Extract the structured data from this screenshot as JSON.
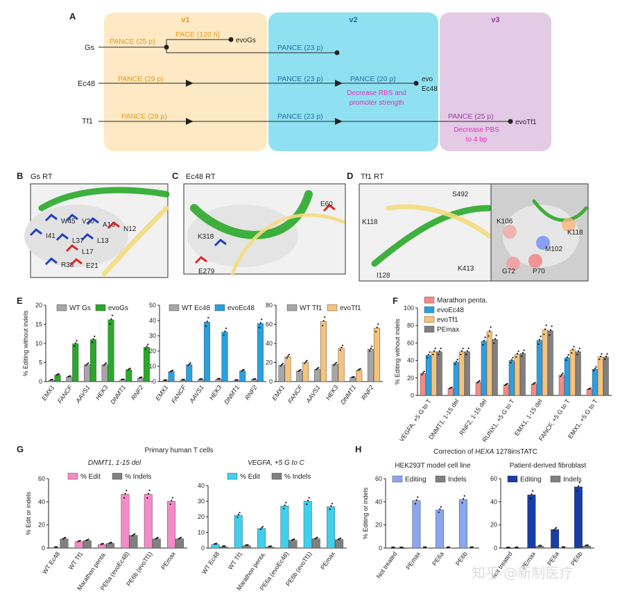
{
  "panels": {
    "A": {
      "label": "A",
      "phases": [
        {
          "name": "v1",
          "color": "#fde9c4",
          "text_color": "#e59a14"
        },
        {
          "name": "v2",
          "color": "#8fe1f1",
          "text_color": "#1f6ea8"
        },
        {
          "name": "v3",
          "color": "#e3cbe6",
          "text_color": "#9a3aa6"
        }
      ],
      "rows": [
        {
          "name": "Gs"
        },
        {
          "name": "Ec48"
        },
        {
          "name": "Tf1"
        }
      ],
      "labels": {
        "gs_v1": "PANCE (25 p)",
        "gs_pace": "PACE (120 h)",
        "gs_end": "evoGs",
        "gs_v2": "PANCE (23 p)",
        "ec_v1": "PANCE (29 p)",
        "ec_v2": "PANCE (23 p)",
        "ec_v2b": "PANCE (20 p)",
        "ec_end1": "evo",
        "ec_end2": "Ec48",
        "ec_note1": "Decrease RBS and",
        "ec_note2": "promoter strength",
        "tf_v1": "PANCE (29 p)",
        "tf_v2": "PANCE (23 p)",
        "tf_v3": "PANCE (25 p)",
        "tf_end": "evoTf1",
        "tf_note1": "Decrease PBS",
        "tf_note2": "to 4 bp"
      }
    },
    "B": {
      "label": "B",
      "title": "Gs RT",
      "residues": [
        {
          "name": "W45",
          "color": "#1f3fbf"
        },
        {
          "name": "V20",
          "color": "#1f3fbf"
        },
        {
          "name": "A16",
          "color": "#1f3fbf"
        },
        {
          "name": "N12",
          "color": "#d62828"
        },
        {
          "name": "I41",
          "color": "#1f3fbf"
        },
        {
          "name": "L37",
          "color": "#1f3fbf"
        },
        {
          "name": "L13",
          "color": "#1f3fbf"
        },
        {
          "name": "L17",
          "color": "#d62828"
        },
        {
          "name": "R38",
          "color": "#1f3fbf"
        },
        {
          "name": "E21",
          "color": "#d62828"
        }
      ]
    },
    "C": {
      "label": "C",
      "title": "Ec48 RT",
      "residues": [
        {
          "name": "E60"
        },
        {
          "name": "K318"
        },
        {
          "name": "E279"
        }
      ]
    },
    "D": {
      "label": "D",
      "title": "Tf1 RT",
      "residues_left": [
        {
          "name": "S492"
        },
        {
          "name": "K118"
        },
        {
          "name": "K413"
        },
        {
          "name": "I128"
        }
      ],
      "residues_right": [
        {
          "name": "K106"
        },
        {
          "name": "K118"
        },
        {
          "name": "M102"
        },
        {
          "name": "G72"
        },
        {
          "name": "P70"
        }
      ]
    },
    "F_label": "F",
    "E_label": "E",
    "G_label": "G",
    "H_label": "H",
    "G_title": "Primary human T cells",
    "H_title_pre": "Correction of ",
    "H_title_gene": "HEXA",
    "H_title_post": " 1278insTATC"
  },
  "colors": {
    "wt": "#a6a6a6",
    "gs": "#2aa82a",
    "ec": "#2b9fe0",
    "tf": "#f7c27a",
    "marathon": "#f28b86",
    "pemax": "#808080",
    "pink": "#f48ac7",
    "cyan": "#3fd0ee",
    "hek": "#8aa6ef",
    "fibro": "#173ea5",
    "indel": "#808080"
  },
  "chart_data": [
    {
      "id": "E1",
      "type": "bar",
      "ylabel": "% Editing without indels",
      "ylim": [
        0,
        20
      ],
      "yticks": [
        0,
        5,
        10,
        15,
        20
      ],
      "categories": [
        "EMX1",
        "FANCF",
        "AAVS1",
        "HEK3",
        "DNMT1",
        "RNF2"
      ],
      "series": [
        {
          "name": "WT Gs",
          "color": "wt",
          "values": [
            0.3,
            1.2,
            4.4,
            4.4,
            0.4,
            0.9
          ]
        },
        {
          "name": "evoGs",
          "color": "gs",
          "values": [
            1.7,
            9.9,
            11.0,
            16.2,
            3.1,
            9.0
          ]
        }
      ]
    },
    {
      "id": "E2",
      "type": "bar",
      "ylim": [
        0,
        50
      ],
      "yticks": [
        0,
        10,
        20,
        30,
        40,
        50
      ],
      "categories": [
        "EMX1",
        "FANCF",
        "AAVS1",
        "HEK3",
        "DNMT1",
        "RNF2"
      ],
      "series": [
        {
          "name": "WT Ec48",
          "color": "wt",
          "values": [
            0.5,
            0.8,
            1.2,
            1.4,
            0.6,
            1.2
          ]
        },
        {
          "name": "evoEc48",
          "color": "ec",
          "values": [
            6.5,
            11.0,
            39.0,
            32.5,
            7.0,
            38.0
          ]
        }
      ]
    },
    {
      "id": "E3",
      "type": "bar",
      "ylim": [
        0,
        80
      ],
      "yticks": [
        0,
        20,
        40,
        60,
        80
      ],
      "categories": [
        "EMX1",
        "FANCF",
        "AAVS1",
        "HEK3",
        "DNMT1",
        "RNF2"
      ],
      "series": [
        {
          "name": "WT Tf1",
          "color": "wt",
          "values": [
            17,
            11,
            13,
            18,
            4,
            34
          ]
        },
        {
          "name": "evoTf1",
          "color": "tf",
          "values": [
            26,
            20,
            63,
            35,
            12,
            56
          ]
        }
      ]
    },
    {
      "id": "F",
      "type": "bar",
      "ylabel": "% Editing without indels",
      "ylim": [
        0,
        100
      ],
      "yticks": [
        0,
        20,
        40,
        60,
        80,
        100
      ],
      "categories": [
        "VEGFA, +5 G to T",
        "DNMT1, 1-15 del",
        "RNF2, 1-15 del",
        "RUNX1, +5 G to T",
        "EMX1, 1-15 del",
        "FANCF, +5 G to T",
        "EMX1, +5 G to T"
      ],
      "series": [
        {
          "name": "Marathon penta.",
          "color": "marathon",
          "values": [
            25,
            8,
            15,
            12,
            13,
            23,
            7
          ]
        },
        {
          "name": "evoEc48",
          "color": "ec",
          "values": [
            46,
            38,
            62,
            40,
            63,
            43,
            30
          ]
        },
        {
          "name": "evoTf1",
          "color": "tf",
          "values": [
            50,
            50,
            73,
            47,
            75,
            52,
            44
          ]
        },
        {
          "name": "PEmax",
          "color": "pemax",
          "values": [
            50,
            50,
            64,
            48,
            74,
            50,
            44
          ]
        }
      ]
    },
    {
      "id": "G1",
      "type": "bar",
      "title": "DNMT1, 1-15 del",
      "ylabel": "% Edit or indels",
      "ylim": [
        0,
        60
      ],
      "yticks": [
        0,
        20,
        40,
        60
      ],
      "categories": [
        "WT Ec48",
        "WT Tf1",
        "Marathon penta.",
        "PE6a (evoEc48)",
        "PE6b (evoTf1)",
        "PEmax"
      ],
      "series": [
        {
          "name": "% Edit",
          "color": "pink",
          "values": [
            0.3,
            5.5,
            3.0,
            46.5,
            46.5,
            40.5
          ]
        },
        {
          "name": "% Indels",
          "color": "indel",
          "values": [
            8.0,
            6.5,
            4.0,
            11.0,
            8.0,
            8.0
          ]
        }
      ]
    },
    {
      "id": "G2",
      "type": "bar",
      "title": "VEGFA, +5 G to C",
      "ylim": [
        0,
        40
      ],
      "yticks": [
        0,
        10,
        20,
        30,
        40
      ],
      "categories": [
        "WT Ec48",
        "WT Tf1",
        "Marathon penta.",
        "PE6a (evoEc48)",
        "PE6b (evoTf1)",
        "PEmax"
      ],
      "series": [
        {
          "name": "% Edit",
          "color": "cyan",
          "values": [
            2.3,
            21.0,
            12.5,
            27.0,
            30.0,
            26.5
          ]
        },
        {
          "name": "% Indels",
          "color": "indel",
          "values": [
            0.8,
            1.5,
            0.7,
            5.0,
            6.0,
            5.5
          ]
        }
      ]
    },
    {
      "id": "H1",
      "type": "bar",
      "title": "HEK293T model cell line",
      "ylabel": "% Editing or indels",
      "ylim": [
        0,
        60
      ],
      "yticks": [
        0,
        20,
        40,
        60
      ],
      "categories": [
        "Not treated",
        "PEmax",
        "PE6a",
        "PE6b"
      ],
      "series": [
        {
          "name": "Editing",
          "color": "hek",
          "values": [
            0,
            41,
            33,
            42
          ]
        },
        {
          "name": "Indels",
          "color": "indel",
          "values": [
            0,
            0.2,
            0.2,
            0.2
          ]
        }
      ]
    },
    {
      "id": "H2",
      "type": "bar",
      "title": "Patient-derived fibroblast",
      "ylim": [
        0,
        60
      ],
      "yticks": [
        0,
        20,
        40,
        60
      ],
      "categories": [
        "Not treated",
        "PEmax",
        "PE6a",
        "PE6b"
      ],
      "series": [
        {
          "name": "Editing",
          "color": "fibro",
          "values": [
            0,
            46,
            16,
            53
          ]
        },
        {
          "name": "Indels",
          "color": "indel",
          "values": [
            0,
            1.5,
            0.3,
            1.8
          ]
        }
      ]
    }
  ],
  "watermark": "知乎 @新制医疗"
}
